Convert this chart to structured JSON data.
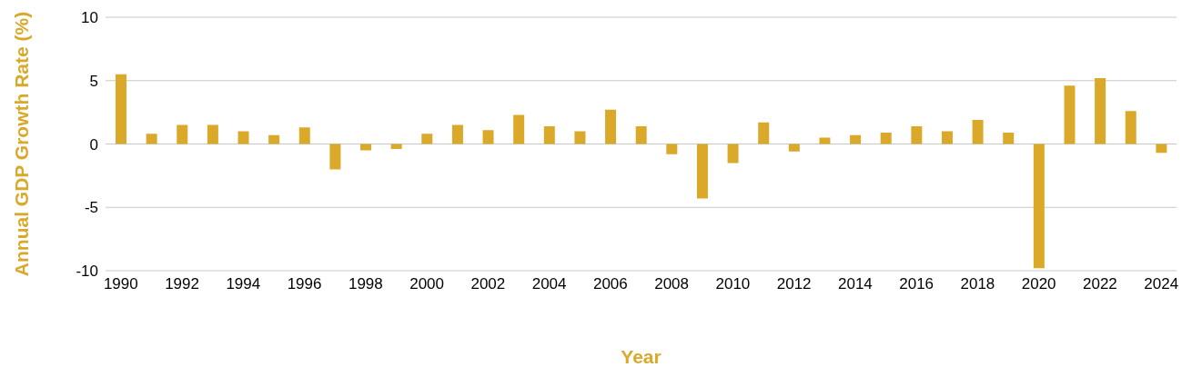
{
  "chart_data": {
    "type": "bar",
    "xlabel": "Year",
    "ylabel": "Annual GDP Growth Rate (%)",
    "categories": [
      "1990",
      null,
      "1992",
      null,
      "1994",
      null,
      "1996",
      null,
      "1998",
      null,
      "2000",
      null,
      "2002",
      null,
      "2004",
      null,
      "2006",
      null,
      "2008",
      null,
      "2010",
      null,
      "2012",
      null,
      "2014",
      null,
      "2016",
      null,
      "2018",
      null,
      "2020",
      null,
      "2022",
      null,
      "2024"
    ],
    "values": [
      5.5,
      0.8,
      1.5,
      1.5,
      1.0,
      0.7,
      1.3,
      -2.0,
      -0.5,
      -0.4,
      0.8,
      1.5,
      1.1,
      2.3,
      1.4,
      1.0,
      2.7,
      1.4,
      -0.8,
      -4.3,
      -1.5,
      1.7,
      -0.6,
      0.5,
      0.7,
      0.9,
      1.4,
      1.0,
      1.9,
      0.9,
      -9.8,
      4.6,
      5.2,
      2.6,
      -0.7
    ],
    "color": "#daa92a",
    "ylim": [
      -10,
      10
    ],
    "yticks": [
      -10,
      -5,
      0,
      5,
      10
    ],
    "grid": "y"
  }
}
